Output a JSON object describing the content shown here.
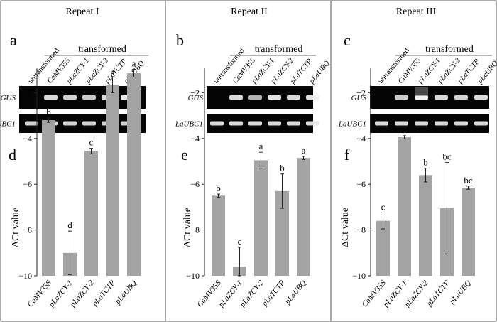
{
  "figure": {
    "panels": [
      {
        "repeat_title": "Repeat I",
        "gel_letter": "a",
        "chart_letter": "d",
        "transformed_label": "transformed",
        "lanes": [
          "untransformed",
          "CaMV35S",
          "pLaZCY-1",
          "pLaZCY-2",
          "pLaTCTP",
          "pLaUBQ"
        ],
        "gel_rows": [
          "GUS",
          "LaUBC1"
        ],
        "gus_band_intensity": [
          0.0,
          0.85,
          0.8,
          0.75,
          0.85,
          0.95
        ],
        "ref_band_intensity": [
          0.8,
          0.8,
          0.8,
          0.8,
          0.8,
          0.8
        ]
      },
      {
        "repeat_title": "Repeat II",
        "gel_letter": "b",
        "chart_letter": "e",
        "transformed_label": "transformed",
        "lanes": [
          "untransformed",
          "CaMV35S",
          "pLaZCY-1",
          "pLaZCY-2",
          "pLaTCTP",
          "pLaUBQ"
        ],
        "gel_rows": [
          "GUS",
          "LaUBC1"
        ],
        "gus_band_intensity": [
          0.0,
          0.85,
          0.6,
          0.9,
          0.85,
          0.9
        ],
        "ref_band_intensity": [
          0.85,
          0.85,
          0.85,
          0.85,
          0.85,
          0.85
        ]
      },
      {
        "repeat_title": "Repeat III",
        "gel_letter": "c",
        "chart_letter": "f",
        "transformed_label": "transformed",
        "lanes": [
          "untransformed",
          "CaMV35S",
          "pLaZCY-1",
          "pLaZCY-2",
          "pLaTCTP",
          "pLaUBQ"
        ],
        "gel_rows": [
          "GUS",
          "LaUBC1"
        ],
        "gus_band_intensity": [
          0.0,
          0.75,
          1.0,
          0.85,
          0.8,
          0.85
        ],
        "ref_band_intensity": [
          0.85,
          0.85,
          0.85,
          0.85,
          0.85,
          0.85
        ]
      }
    ]
  },
  "chart_data": [
    {
      "type": "bar",
      "categories": [
        "CaMV35S",
        "pLaZCY-1",
        "pLaZCY-2",
        "pLaTCTP",
        "pLaUBQ"
      ],
      "values": [
        -3.2,
        -9.0,
        -4.55,
        -1.65,
        -1.15
      ],
      "errors": [
        0.1,
        0.95,
        0.12,
        0.35,
        0.17
      ],
      "letters": [
        "b",
        "d",
        "c",
        "a",
        "a"
      ],
      "ylabel": "ΔCt value",
      "ylim": [
        -10,
        -1
      ],
      "yticks": [
        -10,
        -8,
        -6,
        -4,
        -2
      ],
      "color": "#a3a3a3"
    },
    {
      "type": "bar",
      "categories": [
        "CaMV35S",
        "pLaZCY-1",
        "pLaZCY-2",
        "pLaTCTP",
        "pLaUBQ"
      ],
      "values": [
        -6.5,
        -9.6,
        -4.95,
        -6.3,
        -4.85
      ],
      "errors": [
        0.07,
        0.85,
        0.35,
        0.75,
        0.07
      ],
      "letters": [
        "b",
        "c",
        "a",
        "b",
        "a"
      ],
      "ylabel": "ΔCt value",
      "ylim": [
        -10,
        -1
      ],
      "yticks": [
        -10,
        -8,
        -6,
        -4,
        -2
      ],
      "color": "#a3a3a3"
    },
    {
      "type": "bar",
      "categories": [
        "CaMV35S",
        "pLaZCY-1",
        "pLaZCY-2",
        "pLaTCTP",
        "pLaUBQ"
      ],
      "values": [
        -7.6,
        -3.95,
        -5.6,
        -7.05,
        -6.15
      ],
      "errors": [
        0.35,
        0.07,
        0.3,
        2.0,
        0.07
      ],
      "letters": [
        "c",
        "a",
        "b",
        "bc",
        "bc"
      ],
      "ylabel": "ΔCt value",
      "ylim": [
        -10,
        -1
      ],
      "yticks": [
        -10,
        -8,
        -6,
        -4,
        -2
      ],
      "color": "#a3a3a3"
    }
  ]
}
